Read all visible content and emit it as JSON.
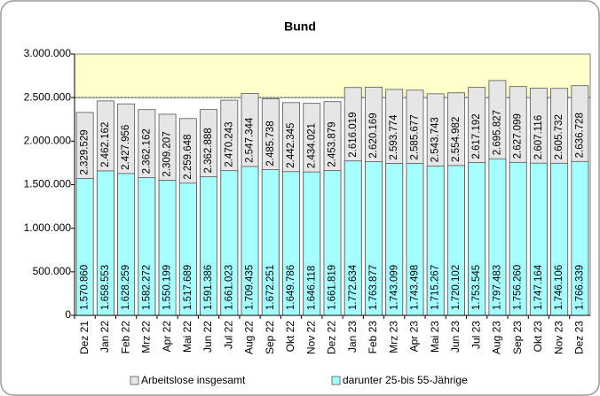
{
  "chart_data": {
    "type": "bar",
    "title": "Bund",
    "categories": [
      "Dez 21",
      "Jan 22",
      "Feb 22",
      "Mrz 22",
      "Apr 22",
      "Mai 22",
      "Jun 22",
      "Jul 22",
      "Aug 22",
      "Sep 22",
      "Okt 22",
      "Nov 22",
      "Dez 22",
      "Jan 23",
      "Feb 23",
      "Mrz 23",
      "Apr 23",
      "Mai 23",
      "Jun 23",
      "Jul 23",
      "Aug 23",
      "Sep 23",
      "Okt 23",
      "Nov 23",
      "Dez 23"
    ],
    "series": [
      {
        "name": "Arbeitslose insgesamt",
        "color": "#e6e6e6",
        "values": [
          2329529,
          2462162,
          2427956,
          2362162,
          2309207,
          2259648,
          2362888,
          2470243,
          2547344,
          2485738,
          2442345,
          2434021,
          2453879,
          2616019,
          2620169,
          2593774,
          2585677,
          2543743,
          2554982,
          2617192,
          2695827,
          2627099,
          2607116,
          2605732,
          2636728
        ],
        "value_labels": [
          "2.329.529",
          "2.462.162",
          "2.427.956",
          "2.362.162",
          "2.309.207",
          "2.259.648",
          "2.362.888",
          "2.470.243",
          "2.547.344",
          "2.485.738",
          "2.442.345",
          "2.434.021",
          "2.453.879",
          "2.616.019",
          "2.620.169",
          "2.593.774",
          "2.585.677",
          "2.543.743",
          "2.554.982",
          "2.617.192",
          "2.695.827",
          "2.627.099",
          "2.607.116",
          "2.605.732",
          "2.636.728"
        ]
      },
      {
        "name": "darunter 25-bis 55-Jährige",
        "color": "#a6ffff",
        "values": [
          1570860,
          1658553,
          1628259,
          1582272,
          1550199,
          1517689,
          1591386,
          1661023,
          1709435,
          1672251,
          1649786,
          1646118,
          1661819,
          1772634,
          1763877,
          1743099,
          1743498,
          1715267,
          1720102,
          1753545,
          1797483,
          1756260,
          1747164,
          1746106,
          1766339
        ],
        "value_labels": [
          "1.570.860",
          "1.658.553",
          "1.628.259",
          "1.582.272",
          "1.550.199",
          "1.517.689",
          "1.591.386",
          "1.661.023",
          "1.709.435",
          "1.672.251",
          "1.649.786",
          "1.646.118",
          "1.661.819",
          "1.772.634",
          "1.763.877",
          "1.743.099",
          "1.743.498",
          "1.715.267",
          "1.720.102",
          "1.753.545",
          "1.797.483",
          "1.756.260",
          "1.747.164",
          "1.746.106",
          "1.766.339"
        ]
      }
    ],
    "ylim": [
      0,
      3000000
    ],
    "yticks": [
      0,
      {
        "value": 500000,
        "label": "500.000"
      },
      {
        "value": 1000000,
        "label": "1.000.000"
      },
      {
        "value": 1500000,
        "label": "1.500.000"
      },
      {
        "value": 2000000,
        "label": "2.000.000"
      },
      {
        "value": 2500000,
        "label": "2.500.000"
      },
      {
        "value": 3000000,
        "label": "3.000.000"
      }
    ],
    "highlight": {
      "from": 2500000,
      "color": "#ffffcc"
    },
    "overlap": true
  }
}
